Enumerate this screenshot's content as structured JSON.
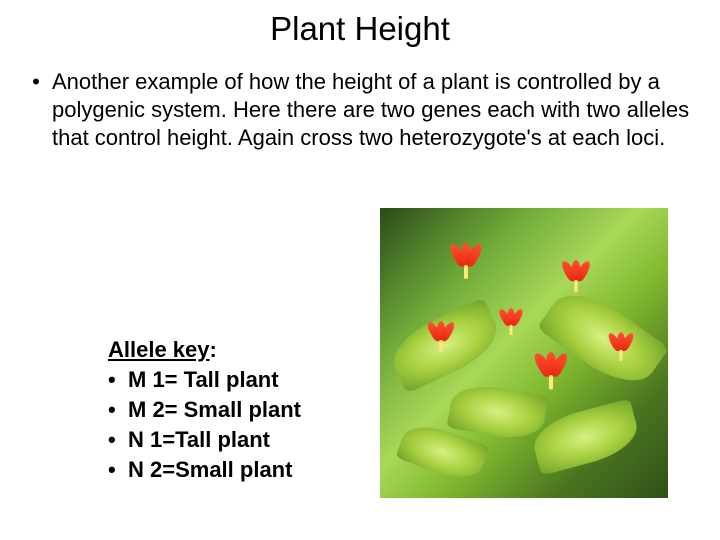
{
  "title": "Plant Height",
  "body": {
    "bullet": "•",
    "text": "Another example of how the height of a plant is controlled by a polygenic system. Here there are two genes each with two alleles that control height. Again cross two heterozygote's at each loci."
  },
  "allele_key": {
    "heading": "Allele key",
    "bullet": "•",
    "items": [
      "M 1= Tall plant",
      "M 2= Small plant",
      "N 1=Tall plant",
      "N 2=Small plant"
    ]
  },
  "colors": {
    "text": "#000000",
    "background": "#ffffff",
    "flower": "#ff5030",
    "leaf_light": "#d8f080",
    "leaf_dark": "#6fa028"
  }
}
